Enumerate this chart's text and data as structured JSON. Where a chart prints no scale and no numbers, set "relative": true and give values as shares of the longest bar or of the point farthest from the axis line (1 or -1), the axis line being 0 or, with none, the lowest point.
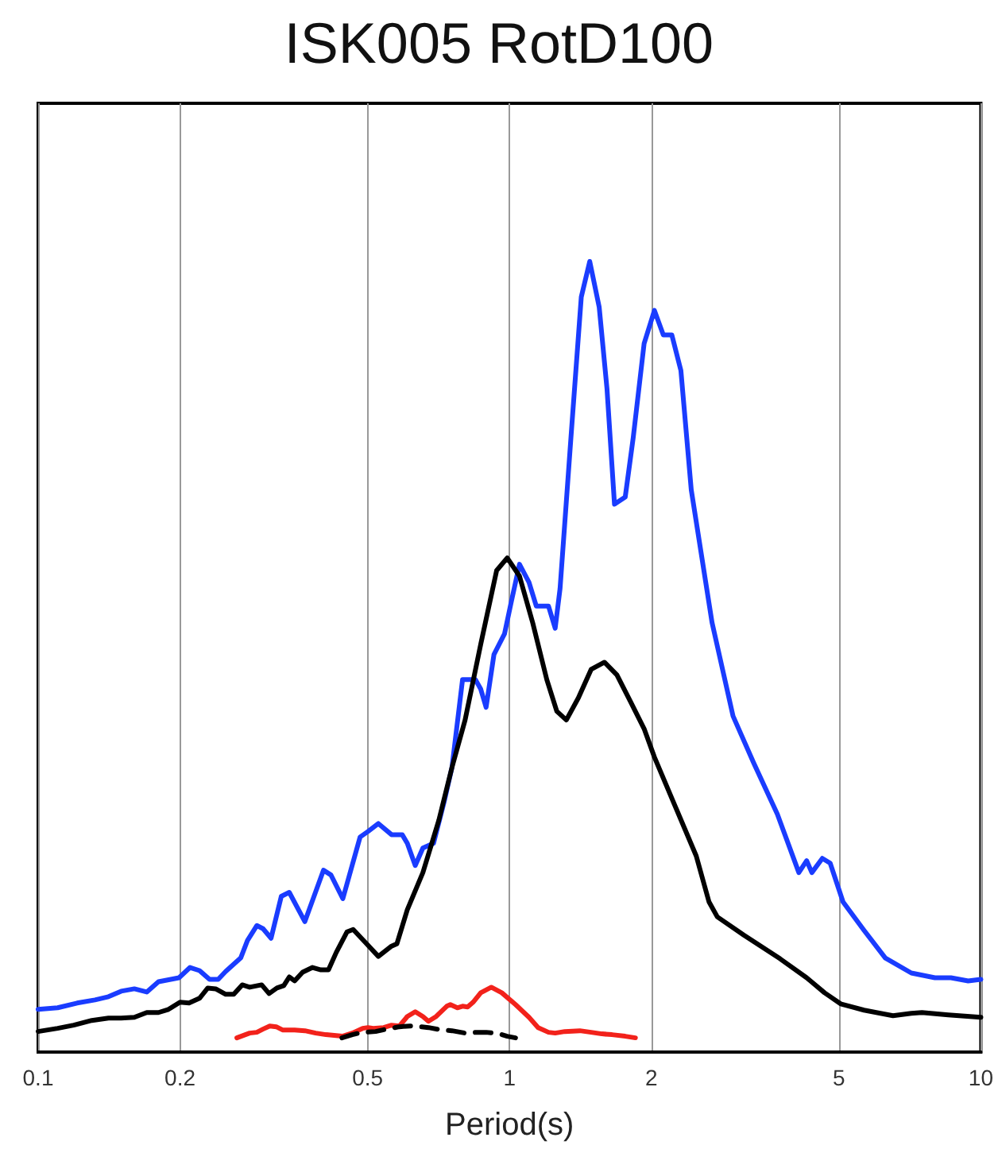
{
  "chart_data": {
    "type": "line",
    "title": "ISK005 RotD100",
    "xlabel": "Period(s)",
    "relative": true,
    "log": "x",
    "grid": "x",
    "marker": "none",
    "xlim": [
      0.1,
      10
    ],
    "xticks": [
      0.1,
      0.2,
      0.5,
      1,
      2,
      5,
      10
    ],
    "series": [
      {
        "color": "#1a3cff",
        "x": [
          0.1,
          0.11,
          0.121,
          0.132,
          0.141,
          0.15,
          0.16,
          0.17,
          0.18,
          0.199,
          0.21,
          0.22,
          0.231,
          0.241,
          0.25,
          0.269,
          0.278,
          0.291,
          0.3,
          0.312,
          0.328,
          0.341,
          0.368,
          0.403,
          0.418,
          0.443,
          0.482,
          0.501,
          0.527,
          0.562,
          0.592,
          0.607,
          0.631,
          0.655,
          0.69,
          0.727,
          0.755,
          0.795,
          0.847,
          0.869,
          0.892,
          0.927,
          0.976,
          1.01,
          1.05,
          1.1,
          1.14,
          1.21,
          1.25,
          1.28,
          1.35,
          1.42,
          1.48,
          1.55,
          1.61,
          1.67,
          1.76,
          1.83,
          1.93,
          2.03,
          2.12,
          2.21,
          2.31,
          2.43,
          2.69,
          2.98,
          3.3,
          3.7,
          4.11,
          4.27,
          4.38,
          4.61,
          4.79,
          5.1,
          5.65,
          6.27,
          7.12,
          7.99,
          8.64,
          9.4,
          10
        ],
        "values": [
          0.054,
          0.056,
          0.062,
          0.066,
          0.07,
          0.077,
          0.08,
          0.076,
          0.089,
          0.094,
          0.107,
          0.103,
          0.092,
          0.092,
          0.102,
          0.119,
          0.141,
          0.16,
          0.156,
          0.144,
          0.197,
          0.202,
          0.165,
          0.23,
          0.224,
          0.194,
          0.272,
          0.279,
          0.289,
          0.275,
          0.275,
          0.264,
          0.236,
          0.258,
          0.264,
          0.317,
          0.36,
          0.471,
          0.471,
          0.459,
          0.436,
          0.503,
          0.529,
          0.571,
          0.617,
          0.594,
          0.564,
          0.564,
          0.536,
          0.586,
          0.777,
          0.955,
          1,
          0.942,
          0.839,
          0.693,
          0.702,
          0.777,
          0.896,
          0.938,
          0.907,
          0.907,
          0.862,
          0.711,
          0.543,
          0.425,
          0.365,
          0.301,
          0.227,
          0.242,
          0.227,
          0.245,
          0.239,
          0.19,
          0.154,
          0.119,
          0.1,
          0.094,
          0.094,
          0.09,
          0.092
        ]
      },
      {
        "color": "#000000",
        "x": [
          0.1,
          0.11,
          0.119,
          0.13,
          0.141,
          0.15,
          0.16,
          0.17,
          0.18,
          0.189,
          0.2,
          0.209,
          0.22,
          0.229,
          0.238,
          0.25,
          0.26,
          0.271,
          0.281,
          0.298,
          0.309,
          0.321,
          0.332,
          0.341,
          0.35,
          0.364,
          0.382,
          0.398,
          0.413,
          0.429,
          0.452,
          0.466,
          0.494,
          0.527,
          0.562,
          0.577,
          0.607,
          0.655,
          0.708,
          0.755,
          0.805,
          0.869,
          0.939,
          0.989,
          1.05,
          1.12,
          1.2,
          1.26,
          1.32,
          1.4,
          1.49,
          1.59,
          1.69,
          1.81,
          1.93,
          2.03,
          2.25,
          2.49,
          2.65,
          2.76,
          3.14,
          3.75,
          4.27,
          4.66,
          5.04,
          5.65,
          6.51,
          7.12,
          7.5,
          8.53,
          10
        ],
        "values": [
          0.026,
          0.03,
          0.034,
          0.04,
          0.043,
          0.043,
          0.044,
          0.05,
          0.05,
          0.054,
          0.063,
          0.062,
          0.068,
          0.081,
          0.08,
          0.073,
          0.073,
          0.085,
          0.082,
          0.085,
          0.074,
          0.081,
          0.084,
          0.095,
          0.09,
          0.101,
          0.107,
          0.104,
          0.104,
          0.126,
          0.152,
          0.155,
          0.139,
          0.121,
          0.134,
          0.137,
          0.18,
          0.227,
          0.293,
          0.36,
          0.42,
          0.516,
          0.609,
          0.625,
          0.602,
          0.543,
          0.471,
          0.431,
          0.42,
          0.448,
          0.484,
          0.493,
          0.477,
          0.442,
          0.409,
          0.373,
          0.31,
          0.248,
          0.19,
          0.171,
          0.148,
          0.118,
          0.094,
          0.075,
          0.061,
          0.053,
          0.046,
          0.049,
          0.05,
          0.047,
          0.044
        ]
      },
      {
        "color": "#f2221b",
        "x": [
          0.264,
          0.281,
          0.291,
          0.3,
          0.31,
          0.32,
          0.33,
          0.35,
          0.368,
          0.388,
          0.408,
          0.442,
          0.464,
          0.488,
          0.501,
          0.514,
          0.541,
          0.562,
          0.584,
          0.607,
          0.631,
          0.655,
          0.673,
          0.699,
          0.736,
          0.749,
          0.775,
          0.795,
          0.815,
          0.837,
          0.869,
          0.915,
          0.963,
          1.03,
          1.1,
          1.15,
          1.21,
          1.25,
          1.31,
          1.41,
          1.49,
          1.57,
          1.65,
          1.76,
          1.85
        ],
        "values": [
          0.018,
          0.024,
          0.025,
          0.029,
          0.033,
          0.032,
          0.028,
          0.028,
          0.027,
          0.024,
          0.022,
          0.02,
          0.024,
          0.03,
          0.031,
          0.03,
          0.031,
          0.034,
          0.033,
          0.045,
          0.051,
          0.045,
          0.039,
          0.045,
          0.058,
          0.06,
          0.056,
          0.058,
          0.057,
          0.063,
          0.075,
          0.082,
          0.075,
          0.06,
          0.044,
          0.031,
          0.025,
          0.024,
          0.026,
          0.027,
          0.025,
          0.023,
          0.022,
          0.02,
          0.018
        ]
      },
      {
        "color": "#000000",
        "line_style": "dashed",
        "x": [
          0.441,
          0.464,
          0.488,
          0.52,
          0.548,
          0.584,
          0.615,
          0.647,
          0.673,
          0.717,
          0.755,
          0.805,
          0.858,
          0.892,
          0.927,
          0.951,
          0.989,
          1.03
        ],
        "values": [
          0.018,
          0.022,
          0.025,
          0.026,
          0.029,
          0.032,
          0.033,
          0.032,
          0.031,
          0.028,
          0.027,
          0.024,
          0.025,
          0.025,
          0.024,
          0.023,
          0.02,
          0.018
        ]
      }
    ]
  }
}
